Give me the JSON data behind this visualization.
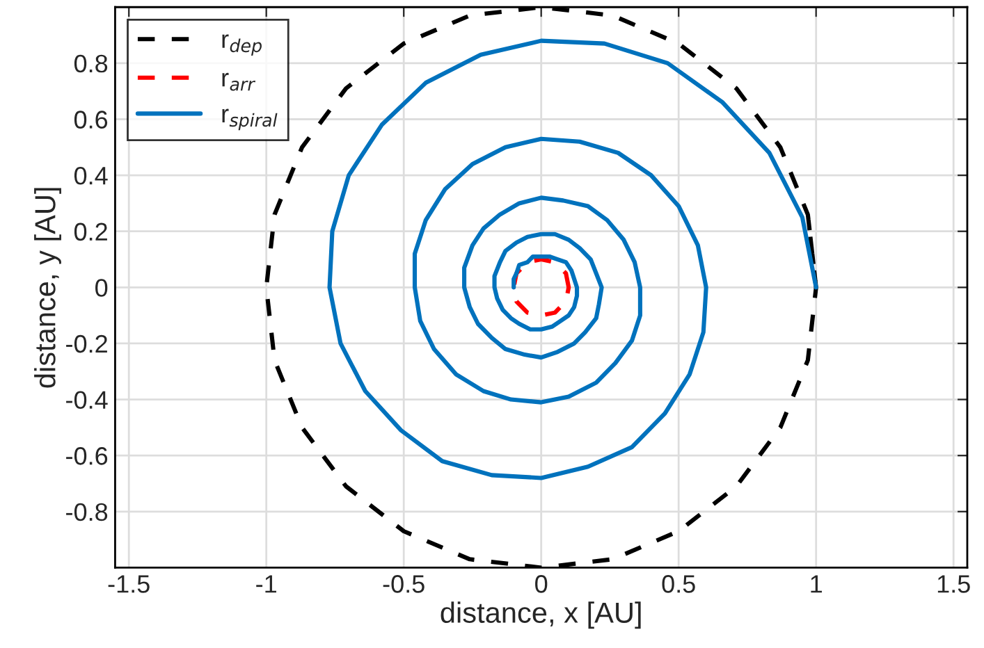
{
  "chart_data": {
    "type": "line",
    "xlabel": "distance, x [AU]",
    "ylabel": "distance, y [AU]",
    "xlim": [
      -1.55,
      1.55
    ],
    "ylim": [
      -1,
      1
    ],
    "xticks": [
      -1.5,
      -1,
      -0.5,
      0,
      0.5,
      1,
      1.5
    ],
    "yticks": [
      -0.8,
      -0.6,
      -0.4,
      -0.2,
      0,
      0.2,
      0.4,
      0.6,
      0.8
    ],
    "grid": true,
    "legend": "top left",
    "marker": "none",
    "series": [
      {
        "name": "r$_{dep}$",
        "color": "#000000",
        "line_style": "dashed",
        "x": [
          1,
          0.97,
          0.87,
          0.71,
          0.5,
          0.26,
          0,
          -0.26,
          -0.5,
          -0.71,
          -0.87,
          -0.97,
          -1,
          -0.97,
          -0.87,
          -0.71,
          -0.5,
          -0.26,
          0,
          0.26,
          0.5,
          0.71,
          0.87,
          0.97,
          1,
          0.97
        ],
        "values": [
          0,
          0.26,
          0.5,
          0.71,
          0.87,
          0.97,
          1,
          0.97,
          0.87,
          0.71,
          0.5,
          0.26,
          0,
          -0.26,
          -0.5,
          -0.71,
          -0.87,
          -0.97,
          -1,
          -0.97,
          -0.87,
          -0.71,
          -0.5,
          -0.26,
          0,
          0.26
        ]
      },
      {
        "name": "r$_{arr}$",
        "color": "#ff0000",
        "line_style": "dashed",
        "x": [
          0.1,
          0.09,
          0.05,
          0,
          -0.05,
          -0.09,
          -0.1,
          -0.09,
          -0.05,
          0,
          0.05,
          0.09,
          0.1,
          0.09
        ],
        "values": [
          0,
          0.05,
          0.09,
          0.1,
          0.09,
          0.05,
          0,
          -0.05,
          -0.09,
          -0.1,
          -0.09,
          -0.05,
          0,
          0.05
        ]
      },
      {
        "name": "r$_{spiral}$",
        "color": "#0072bd",
        "line_style": "solid",
        "x": [
          1,
          0.95,
          0.83,
          0.66,
          0.46,
          0.23,
          0,
          -0.22,
          -0.42,
          -0.58,
          -0.7,
          -0.76,
          -0.77,
          -0.73,
          -0.64,
          -0.51,
          -0.36,
          -0.18,
          0,
          0.17,
          0.33,
          0.45,
          0.54,
          0.59,
          0.6,
          0.57,
          0.5,
          0.4,
          0.28,
          0.14,
          0,
          -0.13,
          -0.25,
          -0.35,
          -0.42,
          -0.46,
          -0.46,
          -0.44,
          -0.39,
          -0.31,
          -0.21,
          -0.11,
          0,
          0.1,
          0.2,
          0.27,
          0.33,
          0.36,
          0.36,
          0.34,
          0.3,
          0.24,
          0.17,
          0.08,
          0,
          -0.08,
          -0.15,
          -0.21,
          -0.25,
          -0.28,
          -0.28,
          -0.26,
          -0.23,
          -0.18,
          -0.13,
          -0.06,
          0,
          0.06,
          0.12,
          0.16,
          0.2,
          0.21,
          0.22,
          0.2,
          0.18,
          0.14,
          0.1,
          0.05,
          0,
          -0.05,
          -0.09,
          -0.13,
          -0.15,
          -0.17,
          -0.17,
          -0.16,
          -0.14,
          -0.11,
          -0.08,
          -0.04,
          0,
          0.04,
          0.07,
          0.1,
          0.12,
          0.13,
          0.13,
          0.12,
          0.11,
          0.09,
          0.06,
          0.03,
          0,
          -0.03,
          -0.05,
          -0.08,
          -0.09,
          -0.1,
          -0.1
        ],
        "values": [
          0,
          0.25,
          0.48,
          0.66,
          0.8,
          0.87,
          0.88,
          0.83,
          0.73,
          0.58,
          0.4,
          0.2,
          0,
          -0.2,
          -0.37,
          -0.51,
          -0.62,
          -0.67,
          -0.68,
          -0.64,
          -0.57,
          -0.45,
          -0.31,
          -0.16,
          0,
          0.15,
          0.29,
          0.4,
          0.48,
          0.52,
          0.53,
          0.5,
          0.44,
          0.35,
          0.24,
          0.12,
          0,
          -0.12,
          -0.22,
          -0.31,
          -0.37,
          -0.4,
          -0.41,
          -0.39,
          -0.34,
          -0.27,
          -0.19,
          -0.1,
          0,
          0.09,
          0.17,
          0.24,
          0.29,
          0.31,
          0.32,
          0.3,
          0.26,
          0.21,
          0.15,
          0.07,
          0,
          -0.07,
          -0.13,
          -0.18,
          -0.22,
          -0.24,
          -0.25,
          -0.23,
          -0.2,
          -0.16,
          -0.11,
          -0.06,
          0,
          0.05,
          0.1,
          0.14,
          0.17,
          0.19,
          0.19,
          0.18,
          0.16,
          0.13,
          0.09,
          0.04,
          0,
          -0.04,
          -0.08,
          -0.11,
          -0.13,
          -0.15,
          -0.15,
          -0.14,
          -0.12,
          -0.1,
          -0.07,
          -0.03,
          0,
          0.03,
          0.06,
          0.09,
          0.1,
          0.11,
          0.11,
          0.11,
          0.09,
          0.08,
          0.05,
          0.03,
          0
        ]
      }
    ]
  }
}
